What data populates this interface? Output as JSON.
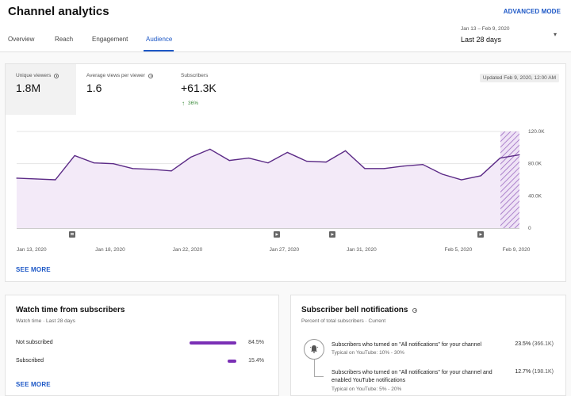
{
  "header": {
    "title": "Channel analytics",
    "advanced_mode": "ADVANCED MODE",
    "tabs": [
      {
        "label": "Overview"
      },
      {
        "label": "Reach"
      },
      {
        "label": "Engagement"
      },
      {
        "label": "Audience"
      }
    ],
    "date_range_small": "Jan 13 – Feb 9, 2020",
    "date_range_label": "Last 28 days"
  },
  "metrics": {
    "unique_viewers": {
      "label": "Unique viewers",
      "value": "1.8M"
    },
    "avg_views": {
      "label": "Average views per viewer",
      "value": "1.6"
    },
    "subscribers": {
      "label": "Subscribers",
      "value": "+61.3K",
      "delta": "36%"
    },
    "updated": "Updated Feb 9, 2020, 12:00 AM"
  },
  "chart_data": {
    "type": "area",
    "y_ticks": [
      "120.0K",
      "80.0K",
      "40.0K",
      "0"
    ],
    "ylim": [
      0,
      120000
    ],
    "x_labels": [
      "Jan 13, 2020",
      "Jan 18, 2020",
      "Jan 22, 2020",
      "Jan 27, 2020",
      "Jan 31, 2020",
      "Feb 5, 2020",
      "Feb 9, 2020"
    ],
    "values": [
      62000,
      61000,
      60000,
      90000,
      81000,
      80000,
      74000,
      73000,
      71000,
      88000,
      98000,
      84000,
      87000,
      81000,
      94000,
      83000,
      82000,
      96000,
      74000,
      74000,
      77000,
      79000,
      67000,
      60000,
      65000,
      87000,
      91000
    ],
    "line_color": "#5b2a86",
    "fill_color": "#f3eaf8"
  },
  "see_more": "SEE MORE",
  "watch_time": {
    "title": "Watch time from subscribers",
    "subtitle": "Watch time · Last 28 days",
    "rows": [
      {
        "label": "Not subscribed",
        "pct": "84.5%",
        "value": 84.5
      },
      {
        "label": "Subscribed",
        "pct": "15.4%",
        "value": 15.4
      }
    ],
    "see_more": "SEE MORE"
  },
  "bell": {
    "title": "Subscriber bell notifications",
    "subtitle": "Percent of total subscribers · Current",
    "rows": [
      {
        "text": "Subscribers who turned on \"All notifications\" for your channel",
        "sub": "Typical on YouTube: 10% - 30%",
        "pct": "23.5%",
        "count": "(366.1K)"
      },
      {
        "text": "Subscribers who turned on \"All notifications\" for your channel and enabled YouTube notifications",
        "sub": "Typical on YouTube: 5% - 20%",
        "pct": "12.7%",
        "count": "(198.1K)"
      }
    ]
  }
}
